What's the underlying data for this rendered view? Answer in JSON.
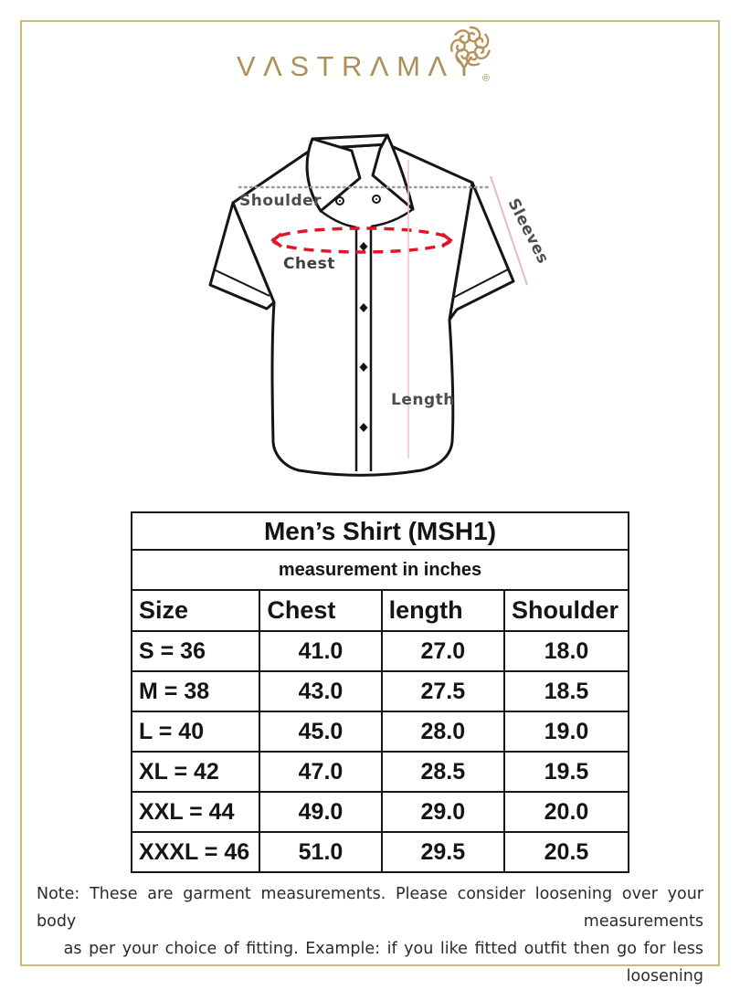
{
  "brand": {
    "name": "VASTRAMAY",
    "wordmark_display": "VΛSTRΛMΛY",
    "registered_mark": "®"
  },
  "diagram": {
    "shoulder_label": "Shoulder",
    "chest_label": "Chest",
    "sleeves_label": "Sleeves",
    "length_label": "Length"
  },
  "size_chart": {
    "title": "Men’s Shirt (MSH1)",
    "subtitle": "measurement in inches",
    "columns": [
      "Size",
      "Chest",
      "length",
      "Shoulder"
    ],
    "rows": [
      [
        "S = 36",
        "41.0",
        "27.0",
        "18.0"
      ],
      [
        "M = 38",
        "43.0",
        "27.5",
        "18.5"
      ],
      [
        "L = 40",
        "45.0",
        "28.0",
        "19.0"
      ],
      [
        "XL = 42",
        "47.0",
        "28.5",
        "19.5"
      ],
      [
        "XXL = 44",
        "49.0",
        "29.0",
        "20.0"
      ],
      [
        "XXXL = 46",
        "51.0",
        "29.5",
        "20.5"
      ]
    ]
  },
  "note": {
    "line1": "Note: These are garment measurements. Please consider loosening over your body measurements",
    "line2": "as per your choice of fitting. Example: if you like fitted outfit then go for less loosening"
  },
  "colors": {
    "brand_gold": "#ae8f58",
    "frame_gold": "#cbb97d",
    "chest_ellipse_red": "#e0172b",
    "measure_line_pink": "#eab8be",
    "label_gray": "#4d4d4d",
    "table_ink": "#141414"
  }
}
